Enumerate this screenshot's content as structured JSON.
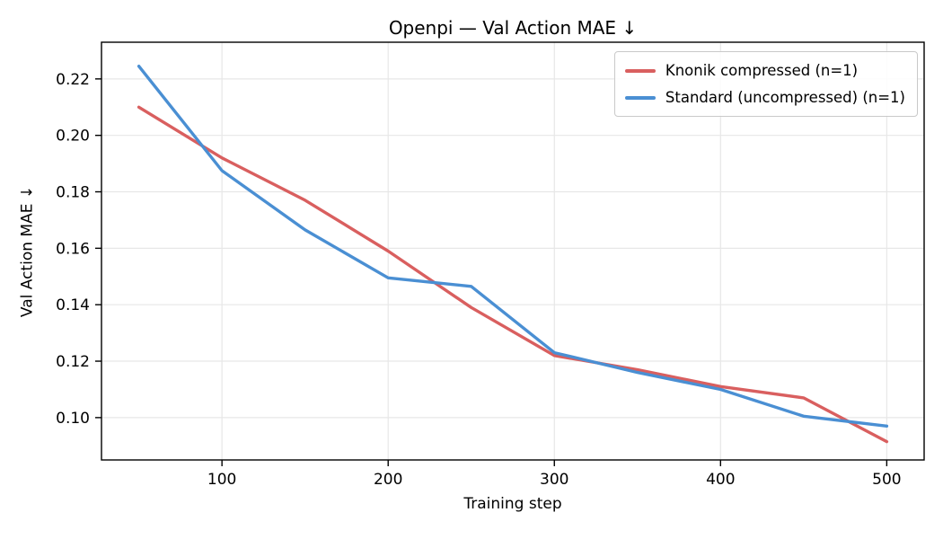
{
  "chart_data": {
    "type": "line",
    "title": "Openpi — Val Action MAE ↓",
    "xlabel": "Training step",
    "ylabel": "Val Action MAE ↓",
    "x": [
      50,
      100,
      150,
      200,
      250,
      300,
      350,
      400,
      450,
      500
    ],
    "series": [
      {
        "name": "Knonik compressed (n=1)",
        "color": "#d95f5f",
        "values": [
          0.21,
          0.192,
          0.177,
          0.159,
          0.139,
          0.122,
          0.117,
          0.111,
          0.107,
          0.0915
        ]
      },
      {
        "name": "Standard (uncompressed) (n=1)",
        "color": "#4a8fd3",
        "values": [
          0.2245,
          0.1875,
          0.1665,
          0.1495,
          0.1465,
          0.123,
          0.116,
          0.11,
          0.1005,
          0.097
        ]
      }
    ],
    "xlim": [
      27.5,
      522.5
    ],
    "ylim": [
      0.085,
      0.233
    ],
    "xticks": [
      100,
      200,
      300,
      400,
      500
    ],
    "xtick_labels": [
      "100",
      "200",
      "300",
      "400",
      "500"
    ],
    "yticks": [
      0.1,
      0.12,
      0.14,
      0.16,
      0.18,
      0.2,
      0.22
    ],
    "ytick_labels": [
      "0.10",
      "0.12",
      "0.14",
      "0.16",
      "0.18",
      "0.20",
      "0.22"
    ],
    "grid": true,
    "grid_color": "#e7e7e7",
    "spine_color": "#000000",
    "legend_position": "upper right",
    "line_width": 3.4
  }
}
